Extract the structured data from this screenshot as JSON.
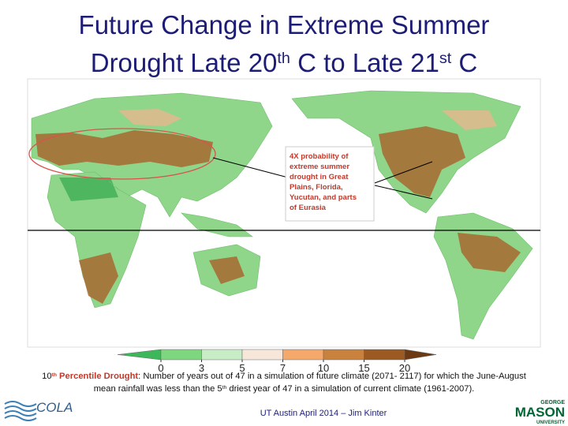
{
  "title": {
    "lines": [
      [
        {
          "text": "Future Change in Extreme Summer"
        }
      ],
      [
        {
          "text": "Drought Late 20"
        },
        {
          "text": "th",
          "sup": true
        },
        {
          "text": " C to Late 21"
        },
        {
          "text": "st",
          "sup": true
        },
        {
          "text": " C"
        }
      ]
    ]
  },
  "annotation": {
    "lines": [
      "4X probability of",
      "extreme summer",
      "drought in Great",
      "Plains, Florida,",
      "Yucutan, and parts",
      "of Eurasia"
    ]
  },
  "colorbar": {
    "ticks": [
      0,
      3,
      5,
      7,
      10,
      15,
      20
    ],
    "under_color": "#3cb85a",
    "colors": [
      "#7ed67f",
      "#c8edc6",
      "#f7e6da",
      "#f4a96a",
      "#c8823e",
      "#9a5a22"
    ],
    "over_color": "#6b3a14"
  },
  "caption": {
    "lines": [
      [
        {
          "text": "10"
        },
        {
          "text": "th",
          "sup": true,
          "bold": true
        },
        {
          "text": " Percentile Drought",
          "bold": true
        },
        {
          "text": ": Number of years out of 47 in a simulation of future climate (2071- 2117) for which the June-August"
        }
      ],
      [
        {
          "text": "mean rainfall was less than the 5"
        },
        {
          "text": "th",
          "sup": true
        },
        {
          "text": " driest year of 47 in a simulation of current climate (1961-2007)."
        }
      ]
    ]
  },
  "footer": {
    "text": "UT Austin April 2014 – Jim Kinter"
  },
  "logos": {
    "left": "COLA",
    "right": [
      "GEORGE",
      "MASON",
      "UNIVERSITY"
    ]
  }
}
